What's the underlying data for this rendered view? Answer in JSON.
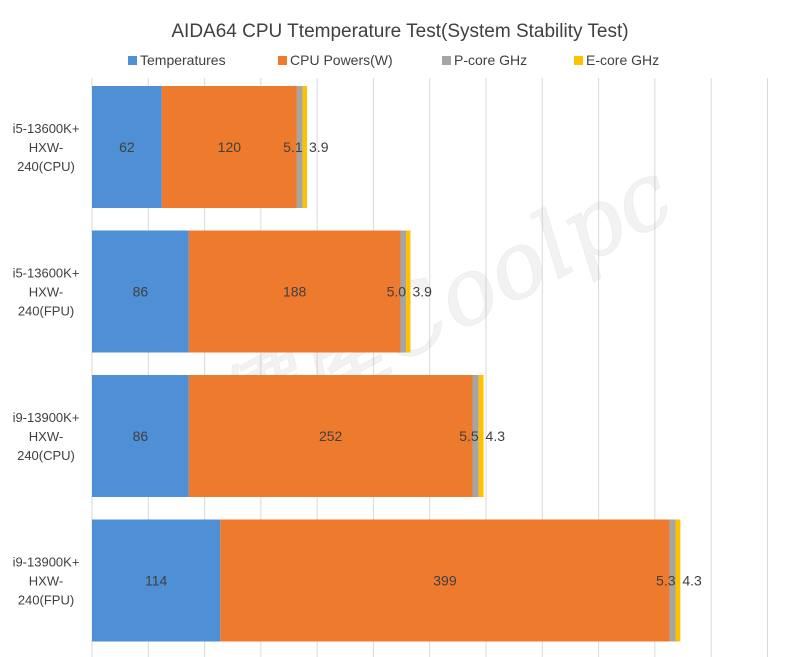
{
  "chart_data": {
    "type": "bar",
    "orientation": "horizontal",
    "stacked": true,
    "title": "AIDA64 CPU Ttemperature Test(System Stability Test)",
    "legend_position": "top",
    "grid": true,
    "xlim": [
      0,
      620
    ],
    "categories": [
      [
        "i5-13600K+",
        "HXW-",
        "240(CPU)"
      ],
      [
        "i5-13600K+",
        "HXW-",
        "240(FPU)"
      ],
      [
        "i9-13900K+",
        "HXW-",
        "240(CPU)"
      ],
      [
        "i9-13900K+",
        "HXW-",
        "240(FPU)"
      ]
    ],
    "series": [
      {
        "name": "Temperatures",
        "color": "#4e8fd6",
        "values": [
          62,
          86,
          86,
          114
        ],
        "labels": [
          "62",
          "86",
          "86",
          "114"
        ]
      },
      {
        "name": "CPU Powers(W)",
        "color": "#ee7a2e",
        "values": [
          120,
          188,
          252,
          399
        ],
        "labels": [
          "120",
          "188",
          "252",
          "399"
        ]
      },
      {
        "name": "P-core GHz",
        "color": "#a5a5a5",
        "values": [
          5.1,
          5.0,
          5.5,
          5.3
        ],
        "labels": [
          "5.1",
          "5.0",
          "5.5",
          "5.3"
        ]
      },
      {
        "name": "E-core GHz",
        "color": "#ffc000",
        "values": [
          3.9,
          3.9,
          4.3,
          4.3
        ],
        "labels": [
          "3.9",
          "3.9",
          "4.3",
          "4.3"
        ]
      }
    ],
    "watermark": "原價屋Coolpc"
  }
}
